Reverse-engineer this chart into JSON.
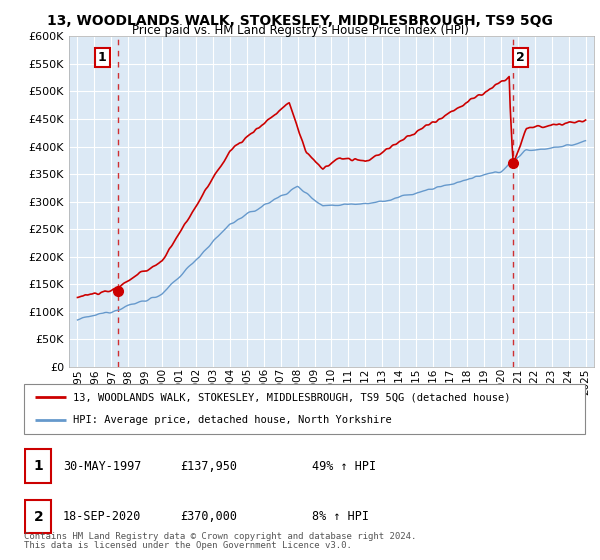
{
  "title": "13, WOODLANDS WALK, STOKESLEY, MIDDLESBROUGH, TS9 5QG",
  "subtitle": "Price paid vs. HM Land Registry's House Price Index (HPI)",
  "legend_line1": "13, WOODLANDS WALK, STOKESLEY, MIDDLESBROUGH, TS9 5QG (detached house)",
  "legend_line2": "HPI: Average price, detached house, North Yorkshire",
  "annotation1_date": "30-MAY-1997",
  "annotation1_price": "£137,950",
  "annotation1_hpi": "49% ↑ HPI",
  "annotation2_date": "18-SEP-2020",
  "annotation2_price": "£370,000",
  "annotation2_hpi": "8% ↑ HPI",
  "footer1": "Contains HM Land Registry data © Crown copyright and database right 2024.",
  "footer2": "This data is licensed under the Open Government Licence v3.0.",
  "sale1_year": 1997.41,
  "sale1_price": 137950,
  "sale2_year": 2020.72,
  "sale2_price": 370000,
  "property_color": "#cc0000",
  "hpi_color": "#6699cc",
  "dashed_color": "#cc0000",
  "bg_color": "#dce9f5",
  "ylim_min": 0,
  "ylim_max": 600000,
  "ytick_step": 50000
}
